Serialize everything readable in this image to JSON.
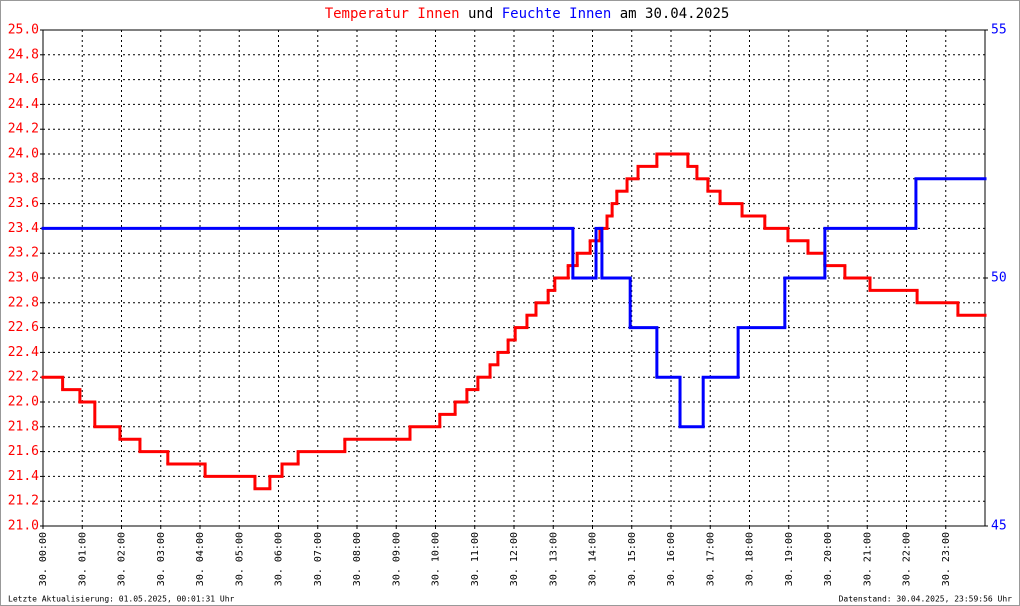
{
  "chart_data": {
    "type": "line",
    "title": [
      "Temperatur Innen",
      "und",
      "Feuchte Innen",
      "am 30.04.2025"
    ],
    "step": "post",
    "xlim": [
      0,
      24
    ],
    "xticks": [
      {
        "value": 0,
        "label": "30. 00:00"
      },
      {
        "value": 1,
        "label": "30. 01:00"
      },
      {
        "value": 2,
        "label": "30. 02:00"
      },
      {
        "value": 3,
        "label": "30. 03:00"
      },
      {
        "value": 4,
        "label": "30. 04:00"
      },
      {
        "value": 5,
        "label": "30. 05:00"
      },
      {
        "value": 6,
        "label": "30. 06:00"
      },
      {
        "value": 7,
        "label": "30. 07:00"
      },
      {
        "value": 8,
        "label": "30. 08:00"
      },
      {
        "value": 9,
        "label": "30. 09:00"
      },
      {
        "value": 10,
        "label": "30. 10:00"
      },
      {
        "value": 11,
        "label": "30. 11:00"
      },
      {
        "value": 12,
        "label": "30. 12:00"
      },
      {
        "value": 13,
        "label": "30. 13:00"
      },
      {
        "value": 14,
        "label": "30. 14:00"
      },
      {
        "value": 15,
        "label": "30. 15:00"
      },
      {
        "value": 16,
        "label": "30. 16:00"
      },
      {
        "value": 17,
        "label": "30. 17:00"
      },
      {
        "value": 18,
        "label": "30. 18:00"
      },
      {
        "value": 19,
        "label": "30. 19:00"
      },
      {
        "value": 20,
        "label": "30. 20:00"
      },
      {
        "value": 21,
        "label": "30. 21:00"
      },
      {
        "value": 22,
        "label": "30. 22:00"
      },
      {
        "value": 23,
        "label": "30. 23:00"
      }
    ],
    "ylim": [
      21,
      25
    ],
    "yticks": [
      {
        "value": 21,
        "label": "21.0"
      },
      21.2,
      21.4,
      21.6,
      21.8,
      {
        "value": 22,
        "label": "22.0"
      },
      22.2,
      22.4,
      22.6,
      22.8,
      {
        "value": 23,
        "label": "23.0"
      },
      23.2,
      23.4,
      23.6,
      23.8,
      {
        "value": 24,
        "label": "24.0"
      },
      24.2,
      24.4,
      24.6,
      24.8,
      {
        "value": 25,
        "label": "25.0"
      }
    ],
    "y2lim": [
      45,
      55
    ],
    "y2ticks": [
      45,
      50,
      55
    ],
    "grid": true,
    "series": [
      {
        "name": "Temperatur Innen",
        "color": "#ff0000",
        "x": [
          0,
          0.5,
          0.94,
          1.32,
          1.96,
          2.47,
          3.18,
          4.13,
          5.4,
          5.78,
          6.09,
          6.5,
          7.69,
          9.35,
          10.11,
          10.5,
          10.8,
          11.08,
          11.39,
          11.59,
          11.85,
          12.03,
          12.33,
          12.56,
          12.87,
          13.04,
          13.38,
          13.61,
          13.94,
          14.19,
          14.37,
          14.5,
          14.62,
          14.88,
          15.16,
          15.64,
          16.43,
          16.66,
          16.94,
          17.25,
          17.81,
          18.39,
          18.98,
          19.49,
          19.92,
          20.43,
          21.07,
          22.27,
          23.31
        ],
        "values": [
          22.2,
          22.1,
          22.0,
          21.8,
          21.7,
          21.6,
          21.5,
          21.4,
          21.3,
          21.4,
          21.5,
          21.6,
          21.7,
          21.8,
          21.9,
          22.0,
          22.1,
          22.2,
          22.3,
          22.4,
          22.5,
          22.6,
          22.7,
          22.8,
          22.9,
          23.0,
          23.1,
          23.2,
          23.3,
          23.4,
          23.5,
          23.6,
          23.7,
          23.8,
          23.9,
          24.0,
          23.9,
          23.8,
          23.7,
          23.6,
          23.5,
          23.4,
          23.3,
          23.2,
          23.1,
          23.0,
          22.9,
          22.8,
          22.7
        ]
      },
      {
        "name": "Feuchte Innen",
        "color": "#0000ff",
        "axis": "y2",
        "x": [
          0,
          13.5,
          14.09,
          14.24,
          14.96,
          15.64,
          16.23,
          16.82,
          17.71,
          18.9,
          19.92,
          22.24
        ],
        "values": [
          51,
          50,
          51,
          50,
          49,
          48,
          47,
          48,
          49,
          50,
          51,
          52
        ]
      }
    ],
    "footer_left": "Letzte Aktualisierung: 01.05.2025, 00:01:31 Uhr",
    "footer_right": "Datenstand: 30.04.2025, 23:59:56 Uhr"
  }
}
